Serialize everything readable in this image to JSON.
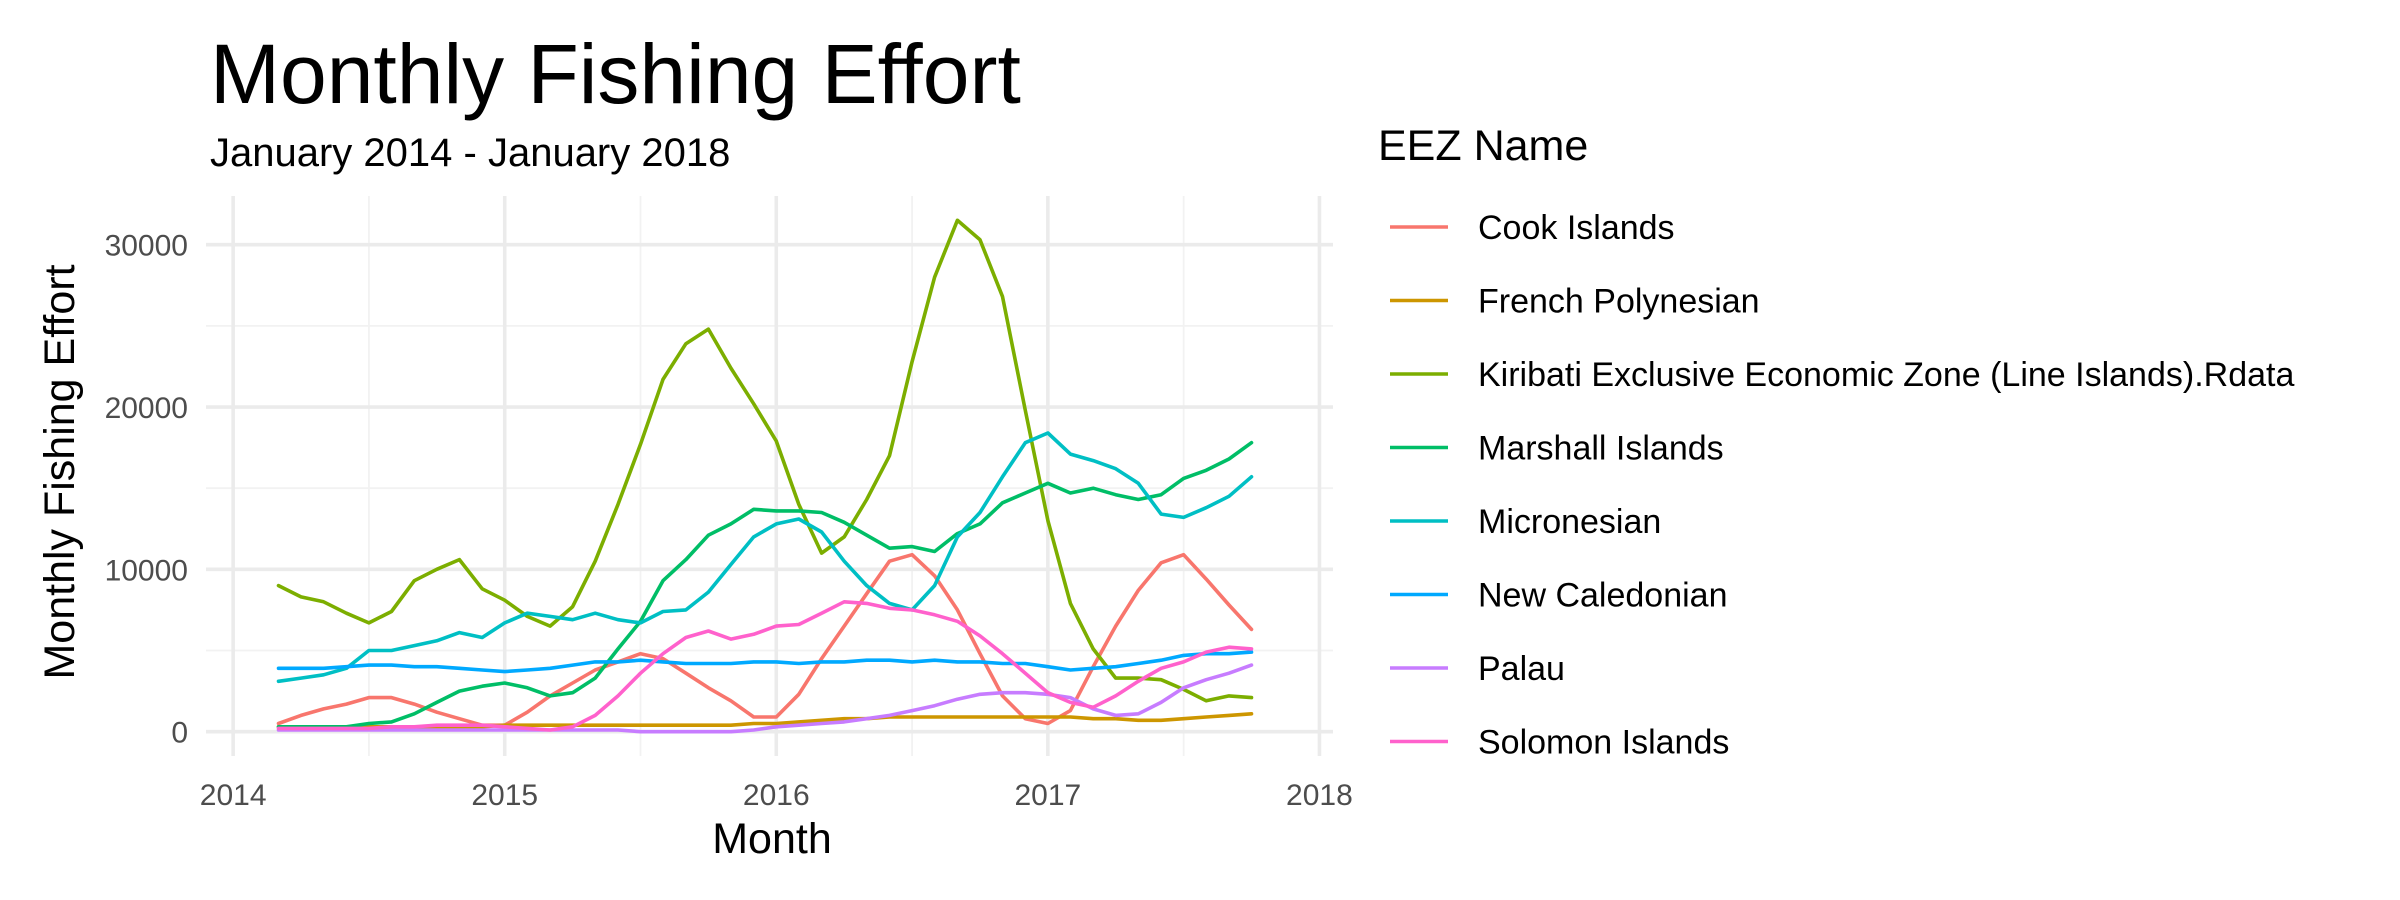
{
  "chart_data": {
    "type": "line",
    "title": "Monthly Fishing Effort",
    "subtitle": "January 2014 - January 2018",
    "xlabel": "Month",
    "ylabel": "Monthly Fishing Effort",
    "xlim": [
      2013.9,
      2018.05
    ],
    "ylim": [
      -1500,
      33000
    ],
    "x_ticks": [
      2014,
      2015,
      2016,
      2017,
      2018
    ],
    "x_tick_labels": [
      "2014",
      "2015",
      "2016",
      "2017",
      "2018"
    ],
    "y_ticks": [
      0,
      10000,
      20000,
      30000
    ],
    "y_tick_labels": [
      "0",
      "10000",
      "20000",
      "30000"
    ],
    "grid": true,
    "legend_title": "EEZ Name",
    "legend_position": "right",
    "x": [
      2014.167,
      2014.25,
      2014.333,
      2014.417,
      2014.5,
      2014.583,
      2014.667,
      2014.75,
      2014.833,
      2014.917,
      2015.0,
      2015.083,
      2015.167,
      2015.25,
      2015.333,
      2015.417,
      2015.5,
      2015.583,
      2015.667,
      2015.75,
      2015.833,
      2015.917,
      2016.0,
      2016.083,
      2016.167,
      2016.25,
      2016.333,
      2016.417,
      2016.5,
      2016.583,
      2016.667,
      2016.75,
      2016.833,
      2016.917,
      2017.0,
      2017.083,
      2017.167,
      2017.25,
      2017.333,
      2017.417,
      2017.5,
      2017.583,
      2017.667,
      2017.75
    ],
    "series": [
      {
        "name": "Cook Islands",
        "color": "#F8766D",
        "values": [
          500,
          1000,
          1400,
          1700,
          2100,
          2100,
          1700,
          1200,
          800,
          400,
          400,
          1200,
          2200,
          3000,
          3800,
          4300,
          4800,
          4500,
          3600,
          2700,
          1900,
          900,
          900,
          2300,
          4500,
          6500,
          8500,
          10500,
          10900,
          9600,
          7500,
          4800,
          2200,
          800,
          500,
          1300,
          4000,
          6500,
          8700,
          10400,
          10900,
          9400,
          7800,
          6300
        ]
      },
      {
        "name": "French Polynesian",
        "color": "#CD9600",
        "values": [
          300,
          300,
          300,
          300,
          300,
          300,
          300,
          300,
          300,
          300,
          400,
          400,
          400,
          400,
          400,
          400,
          400,
          400,
          400,
          400,
          400,
          500,
          500,
          600,
          700,
          800,
          800,
          900,
          900,
          900,
          900,
          900,
          900,
          900,
          900,
          900,
          800,
          800,
          700,
          700,
          800,
          900,
          1000,
          1100
        ]
      },
      {
        "name": "Kiribati Exclusive Economic Zone (Line Islands).Rdata",
        "color": "#7CAE00",
        "values": [
          9000,
          8300,
          8000,
          7300,
          6700,
          7400,
          9300,
          10000,
          10600,
          8800,
          8100,
          7100,
          6500,
          7700,
          10500,
          14000,
          17700,
          21700,
          23900,
          24800,
          22400,
          20200,
          17900,
          14000,
          11000,
          12000,
          14300,
          17000,
          22800,
          28000,
          31500,
          30300,
          26800,
          19800,
          13000,
          7900,
          5100,
          3300,
          3300,
          3200,
          2600,
          1900,
          2200,
          2100
        ]
      },
      {
        "name": "Marshall Islands",
        "color": "#00BE67",
        "values": [
          300,
          300,
          300,
          300,
          500,
          600,
          1100,
          1800,
          2500,
          2800,
          3000,
          2700,
          2200,
          2400,
          3300,
          5100,
          6800,
          9300,
          10600,
          12100,
          12800,
          13700,
          13600,
          13600,
          13500,
          12900,
          12100,
          11300,
          11400,
          11100,
          12200,
          12800,
          14100,
          14700,
          15300,
          14700,
          15000,
          14600,
          14300,
          14600,
          15600,
          16100,
          16800,
          17800
        ]
      },
      {
        "name": "Micronesian",
        "color": "#00BFC4",
        "values": [
          3100,
          3300,
          3500,
          3900,
          5000,
          5000,
          5300,
          5600,
          6100,
          5800,
          6700,
          7300,
          7100,
          6900,
          7300,
          6900,
          6700,
          7400,
          7500,
          8600,
          10300,
          12000,
          12800,
          13100,
          12300,
          10500,
          9000,
          7900,
          7500,
          9000,
          12000,
          13500,
          15700,
          17800,
          18400,
          17100,
          16700,
          16200,
          15300,
          13400,
          13200,
          13800,
          14500,
          15700
        ]
      },
      {
        "name": "New Caledonian",
        "color": "#00A9FF",
        "values": [
          3900,
          3900,
          3900,
          4000,
          4100,
          4100,
          4000,
          4000,
          3900,
          3800,
          3700,
          3800,
          3900,
          4100,
          4300,
          4300,
          4400,
          4300,
          4200,
          4200,
          4200,
          4300,
          4300,
          4200,
          4300,
          4300,
          4400,
          4400,
          4300,
          4400,
          4300,
          4300,
          4200,
          4200,
          4000,
          3800,
          3900,
          4000,
          4200,
          4400,
          4700,
          4800,
          4800,
          4900
        ]
      },
      {
        "name": "Palau",
        "color": "#C77CFF",
        "values": [
          100,
          100,
          100,
          100,
          100,
          100,
          100,
          100,
          100,
          100,
          100,
          100,
          100,
          100,
          100,
          100,
          0,
          0,
          0,
          0,
          0,
          100,
          300,
          400,
          500,
          600,
          800,
          1000,
          1300,
          1600,
          2000,
          2300,
          2400,
          2400,
          2300,
          2100,
          1400,
          1000,
          1100,
          1800,
          2700,
          3200,
          3600,
          4100
        ]
      },
      {
        "name": "Solomon Islands",
        "color": "#FF61CC",
        "values": [
          200,
          200,
          200,
          200,
          200,
          300,
          300,
          400,
          400,
          400,
          300,
          200,
          100,
          300,
          1000,
          2200,
          3600,
          4800,
          5800,
          6200,
          5700,
          6000,
          6500,
          6600,
          7300,
          8000,
          7900,
          7600,
          7500,
          7200,
          6800,
          5900,
          4800,
          3600,
          2400,
          1800,
          1500,
          2200,
          3100,
          3900,
          4300,
          4900,
          5200,
          5100
        ]
      }
    ]
  }
}
